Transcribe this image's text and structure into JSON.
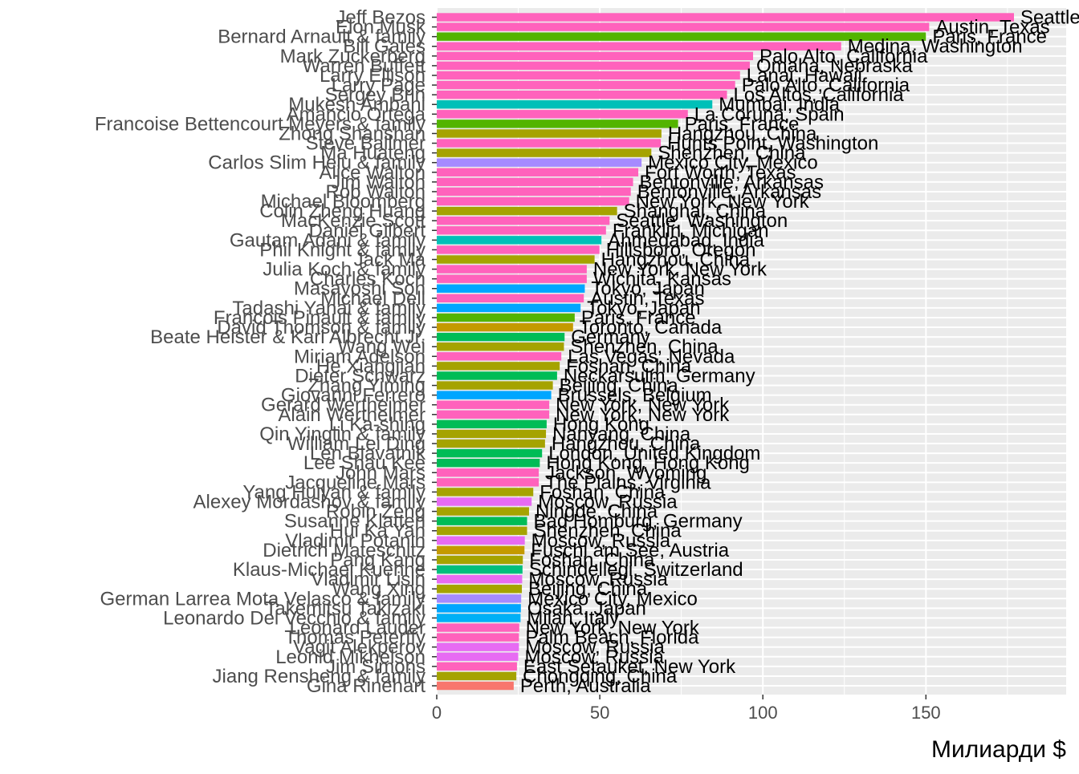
{
  "chart_data": {
    "type": "bar",
    "orientation": "horizontal",
    "xlabel": "Милиарди $",
    "ylabel": "",
    "xlim": [
      0,
      193
    ],
    "xticks": [
      0,
      50,
      100,
      150
    ],
    "grid": true,
    "legend": "none",
    "categories": [
      "Jeff Bezos",
      "Elon Musk",
      "Bernard Arnault & family",
      "Bill Gates",
      "Mark Zuckerberg",
      "Warren Buffett",
      "Larry Ellison",
      "Larry Page",
      "Sergey Brin",
      "Mukesh Ambani",
      "Amancio Ortega",
      "Francoise Bettencourt Meyers & family",
      "Zhong Shanshan",
      "Steve Ballmer",
      "Ma Huateng",
      "Carlos Slim Helu & family",
      "Alice Walton",
      "Jim Walton",
      "Rob Walton",
      "Michael Bloomberg",
      "Colin Zheng Huang",
      "MacKenzie Scott",
      "Daniel Gilbert",
      "Gautam Adani & family",
      "Phil Knight & family",
      "Jack Ma",
      "Julia Koch & family",
      "Charles Koch",
      "Masayoshi Son",
      "Michael Dell",
      "Tadashi Yanai & family",
      "Francois Pinault & family",
      "David Thomson & family",
      "Beate Heister & Karl Albrecht Jr.",
      "Wang Wei",
      "Miriam Adelson",
      "He Xiangjian",
      "Dieter Schwarz",
      "Zhang Yiming",
      "Giovanni Ferrero",
      "Gerard Wertheimer",
      "Alain Wertheimer",
      "Li Ka-shing",
      "Qin Yinglin & family",
      "William Lei Ding",
      "Len Blavatnik",
      "Lee Shau Kee",
      "John Mars",
      "Jacqueline Mars",
      "Yang Huiyan & family",
      "Alexey Mordashov & family",
      "Robin Zeng",
      "Susanne Klatten",
      "Hui Ka Yan",
      "Vladimir Potanin",
      "Dietrich Mateschitz",
      "Pang Kang",
      "Klaus-Michael Kuehne",
      "Vladimir Lisin",
      "Wang Xing",
      "German Larrea Mota Velasco & family",
      "Takemitsu Takizaki",
      "Leonardo Del Vecchio & family",
      "Leonard Lauder",
      "Thomas Peterffy",
      "Vagit Alekperov",
      "Leonid Mikhelson",
      "Jim Simons",
      "Jiang Rensheng & family",
      "Gina Rinehart"
    ],
    "values": [
      177,
      151,
      150,
      124,
      97,
      96,
      93,
      91.5,
      89,
      84.5,
      77,
      74,
      68.9,
      68.7,
      65.8,
      62.8,
      61.8,
      60.2,
      59.5,
      59,
      55.3,
      53,
      51.9,
      50.5,
      49.9,
      48.4,
      46,
      46,
      45.4,
      45.1,
      44.1,
      42.3,
      41.8,
      39.2,
      39,
      38.2,
      37.7,
      36.9,
      35.6,
      35.1,
      34.5,
      34.5,
      33.7,
      33.5,
      33.2,
      32.3,
      31.6,
      31.3,
      31.3,
      29.6,
      29.1,
      28.3,
      27.7,
      27.7,
      27,
      26.9,
      26.4,
      26.3,
      26.2,
      26.1,
      25.9,
      25.8,
      25.7,
      25.3,
      25.2,
      25.2,
      25,
      24.6,
      24.4,
      23.6
    ],
    "locations": [
      "Seattle, Washington",
      "Austin, Texas",
      "Paris, France",
      "Medina, Washington",
      "Palo Alto, California",
      "Omaha, Nebraska",
      "Lanai, Hawaii",
      "Palo Alto, California",
      "Los Altos, California",
      "Mumbai, India",
      "La Coruna, Spain",
      "Paris, France",
      "Hangzhou, China",
      "Hunts Point, Washington",
      "Shenzhen, China",
      "Mexico City, Mexico",
      "Fort Worth, Texas",
      "Bentonville, Arkansas",
      "Bentonville, Arkansas",
      "New York, New York",
      "Shanghai, China",
      "Seattle, Washington",
      "Franklin, Michigan",
      "Ahmedabad, India",
      "Hillsboro, Oregon",
      "Hangzhou, China",
      "New York, New York",
      "Wichita, Kansas",
      "Tokyo, Japan",
      "Austin, Texas",
      "Tokyo, Japan",
      "Paris, France",
      "Toronto, Canada",
      "Germany",
      "Shenzhen, China",
      "Las Vegas, Nevada",
      "Foshan, China",
      "Neckarsulm, Germany",
      "Beijing, China",
      "Brussels, Belgium",
      "New York, New York",
      "New York, New York",
      "Hong Kong",
      "Nanyang, China",
      "Hangzhou, China",
      "London, United Kingdom",
      "Hong Kong, Hong Kong",
      "Jackson, Wyoming",
      "The Plains, Virginia",
      "Foshan, China",
      "Moscow, Russia",
      "Ningde, China",
      "Bad Homburg, Germany",
      "Shenzhen, China",
      "Moscow, Russia",
      "Fuschl am See, Austria",
      "Foshan, China",
      "Schindellegi, Switzerland",
      "Moscow, Russia",
      "Beijing, China",
      "Mexico City, Mexico",
      "Osaka, Japan",
      "Milan, Italy",
      "New York, New York",
      "Palm Beach, Florida",
      "Moscow, Russia",
      "Moscow, Russia",
      "East Setauket, New York",
      "Chongqing, China",
      "Perth, Australia"
    ],
    "bar_colors": [
      "#FF62BC",
      "#FF62BC",
      "#53B400",
      "#FF62BC",
      "#FF62BC",
      "#FF62BC",
      "#FF62BC",
      "#FF62BC",
      "#FF62BC",
      "#00C0B8",
      "#FF62BC",
      "#53B400",
      "#A5A300",
      "#FF62BC",
      "#A5A300",
      "#A58AFF",
      "#FF62BC",
      "#FF62BC",
      "#FF62BC",
      "#FF62BC",
      "#A5A300",
      "#FF62BC",
      "#FF62BC",
      "#00C0B8",
      "#FF62BC",
      "#A5A300",
      "#FF62BC",
      "#FF62BC",
      "#00A6FF",
      "#FF62BC",
      "#00A6FF",
      "#53B400",
      "#C49A00",
      "#00BC56",
      "#A5A300",
      "#FF62BC",
      "#A5A300",
      "#00BC56",
      "#A5A300",
      "#00A6FF",
      "#FF62BC",
      "#FF62BC",
      "#00BC56",
      "#A5A300",
      "#A5A300",
      "#00BC56",
      "#00BC56",
      "#FF62BC",
      "#FF62BC",
      "#A5A300",
      "#E76BF3",
      "#A5A300",
      "#00BC56",
      "#A5A300",
      "#E76BF3",
      "#C49A00",
      "#A5A300",
      "#00BF7D",
      "#E76BF3",
      "#A5A300",
      "#A58AFF",
      "#00A6FF",
      "#00B0F6",
      "#FF62BC",
      "#FF62BC",
      "#E76BF3",
      "#E76BF3",
      "#FF62BC",
      "#A5A300",
      "#F8766D"
    ],
    "colors": {
      "panel_background": "#EBEBEB",
      "grid": "#FFFFFF",
      "tick_text": "#4D4D4D",
      "axis_ticks": "#333333"
    }
  }
}
